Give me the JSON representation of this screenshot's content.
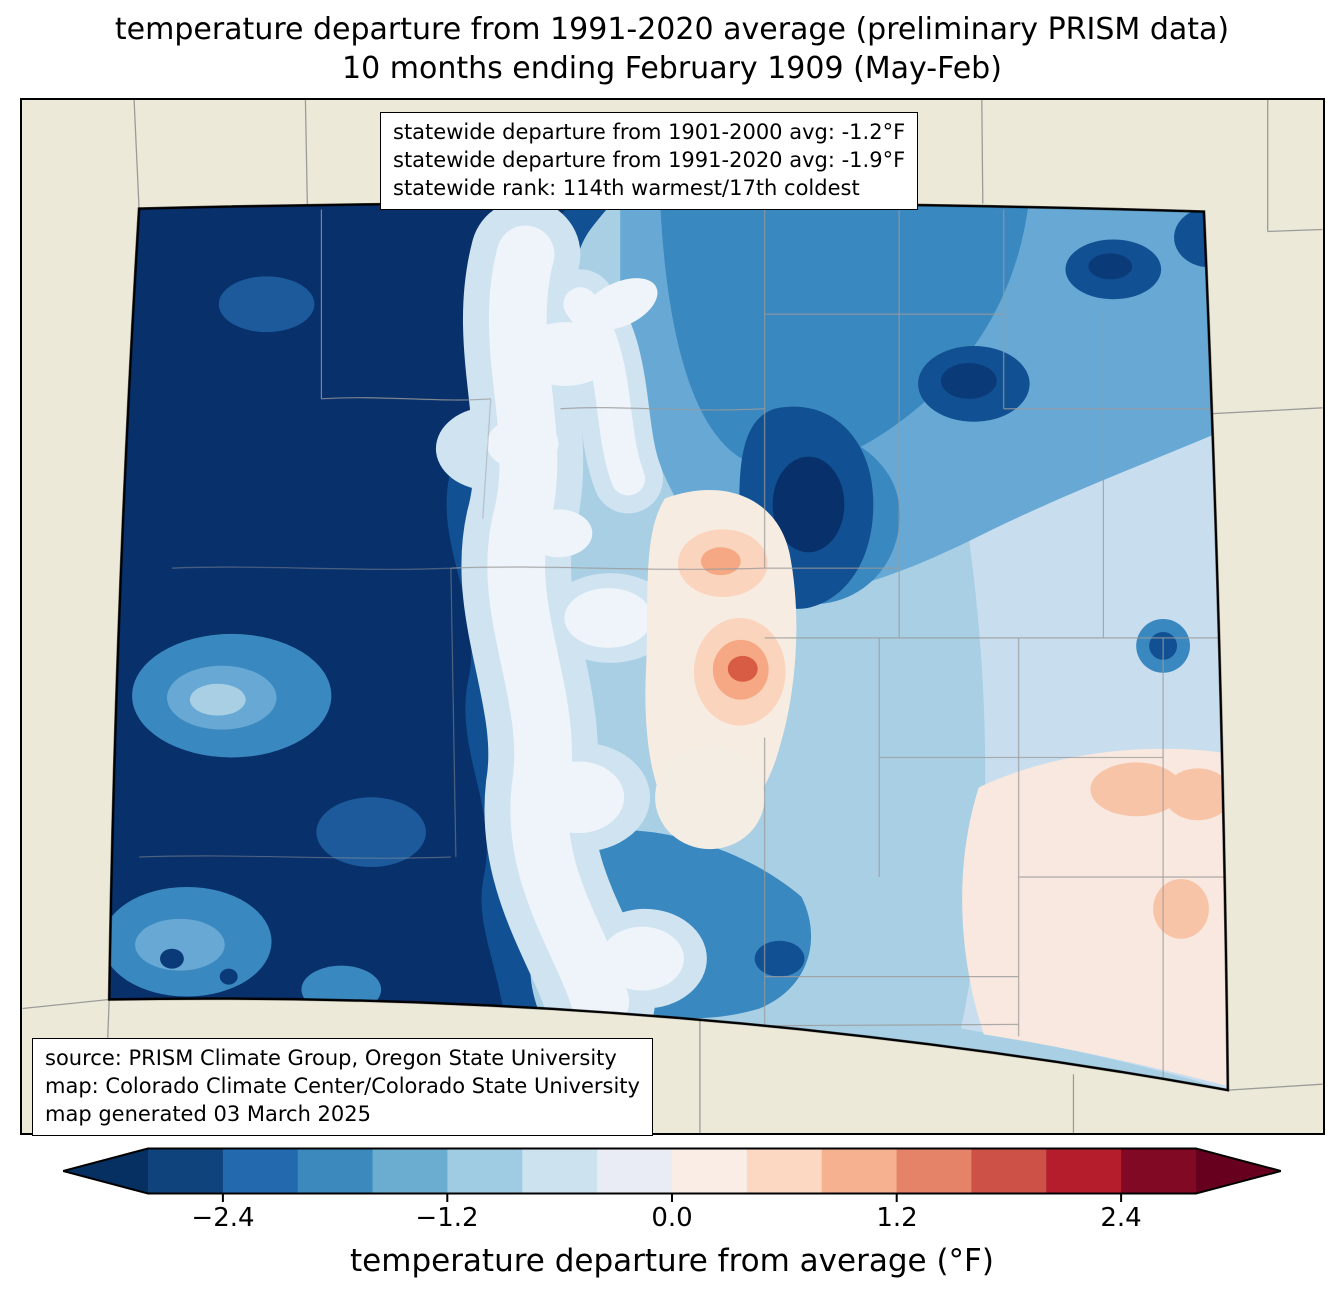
{
  "title": {
    "line1": "temperature departure from 1991-2020 average (preliminary PRISM data)",
    "line2": "10 months ending February 1909 (May-Feb)"
  },
  "stats_box": {
    "lines": [
      "statewide departure from 1901-2000 avg: -1.2°F",
      "statewide departure from 1991-2020 avg: -1.9°F",
      "statewide rank: 114th warmest/17th coldest"
    ]
  },
  "source_box": {
    "lines": [
      "source: PRISM Climate Group, Oregon State University",
      "map: Colorado Climate Center/Colorado State University",
      "map generated 03 March 2025"
    ]
  },
  "colorbar": {
    "label": "temperature departure from average (°F)",
    "ticks": [
      "−2.4",
      "−1.2",
      "0.0",
      "1.2",
      "2.4"
    ],
    "value_range_f": [
      -2.8,
      2.8
    ],
    "segment_colors": [
      "#0f437c",
      "#2369ae",
      "#3c89be",
      "#6bacd1",
      "#9fcce2",
      "#cce3ef",
      "#e9ecf5",
      "#f9ede6",
      "#fcd7c2",
      "#f6b191",
      "#e58368",
      "#ce5148",
      "#b51d2d",
      "#820924"
    ],
    "arrow_left_color": "#053061",
    "arrow_right_color": "#67001f"
  },
  "map": {
    "region": "Colorado",
    "outside_fill": "#ede9d8",
    "county_line_color": "#9b9b9b"
  }
}
